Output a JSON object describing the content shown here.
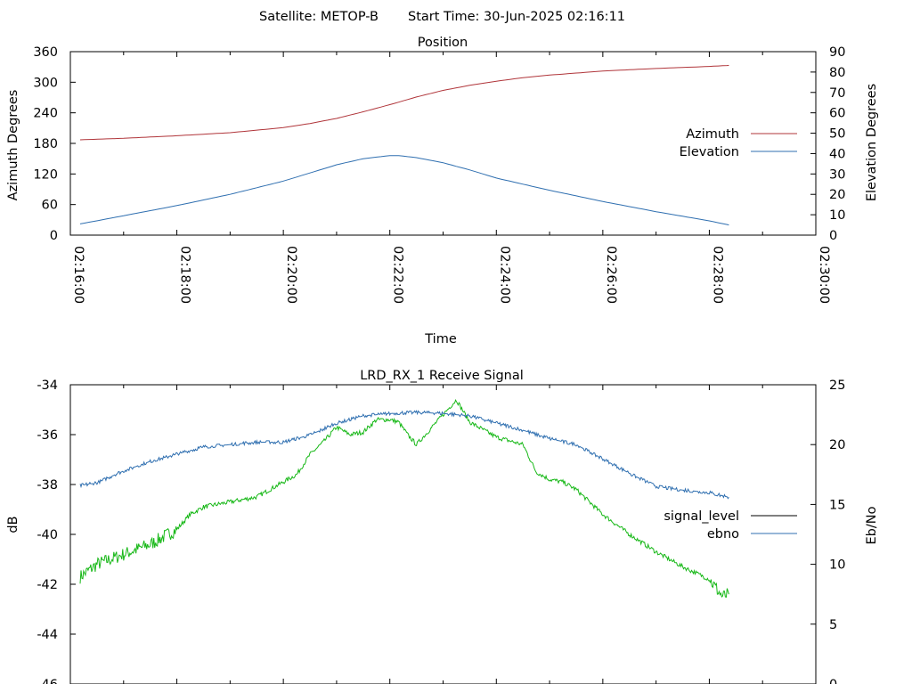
{
  "header": {
    "satellite_label": "Satellite: METOP-B",
    "start_time_label": "Start Time: 30-Jun-2025 02:16:11"
  },
  "chart_data": [
    {
      "type": "line",
      "title": "Position",
      "xlabel": "Time",
      "ylabel": "Azimuth Degrees",
      "y2label": "Elevation Degrees",
      "x_ticks": [
        "02:16:00",
        "02:18:00",
        "02:20:00",
        "02:22:00",
        "02:24:00",
        "02:26:00",
        "02:28:00",
        "02:30:00"
      ],
      "xlim": [
        "02:16:00",
        "02:30:00"
      ],
      "ylim": [
        0,
        360
      ],
      "y_ticks": [
        0,
        60,
        120,
        180,
        240,
        300,
        360
      ],
      "y2lim": [
        0,
        90
      ],
      "y2_ticks": [
        0,
        10,
        20,
        30,
        40,
        50,
        60,
        70,
        80,
        90
      ],
      "legend_position": "right",
      "grid": false,
      "series": [
        {
          "name": "Azimuth",
          "axis": "y",
          "color": "#b0353a",
          "x": [
            "02:16:11",
            "02:17:00",
            "02:18:00",
            "02:19:00",
            "02:20:00",
            "02:20:30",
            "02:21:00",
            "02:21:30",
            "02:22:00",
            "02:22:30",
            "02:23:00",
            "02:23:30",
            "02:24:00",
            "02:24:30",
            "02:25:00",
            "02:26:00",
            "02:27:00",
            "02:28:00",
            "02:28:22"
          ],
          "values": [
            187,
            190,
            195,
            201,
            211,
            219,
            229,
            242,
            256,
            271,
            284,
            294,
            302,
            309,
            314,
            322,
            327,
            331,
            333
          ]
        },
        {
          "name": "Elevation",
          "axis": "y2",
          "color": "#2f6fb0",
          "x": [
            "02:16:11",
            "02:17:00",
            "02:18:00",
            "02:19:00",
            "02:20:00",
            "02:20:30",
            "02:21:00",
            "02:21:30",
            "02:22:00",
            "02:22:10",
            "02:22:30",
            "02:23:00",
            "02:23:30",
            "02:24:00",
            "02:25:00",
            "02:26:00",
            "02:27:00",
            "02:28:00",
            "02:28:22"
          ],
          "values": [
            5.5,
            9.5,
            14.5,
            20,
            26.5,
            30.5,
            34.5,
            37.5,
            39,
            39,
            38,
            35.5,
            32,
            28,
            22,
            16.5,
            11.5,
            7,
            5
          ]
        }
      ]
    },
    {
      "type": "line",
      "title": "LRD_RX_1 Receive Signal",
      "xlabel": "",
      "ylabel": "dB",
      "y2label": "Eb/No",
      "xlim": [
        "02:16:00",
        "02:30:00"
      ],
      "ylim": [
        -46,
        -34
      ],
      "y_ticks": [
        -46,
        -44,
        -42,
        -40,
        -38,
        -36,
        -34
      ],
      "y2lim": [
        0,
        25
      ],
      "y2_ticks": [
        0,
        5,
        10,
        15,
        20,
        25
      ],
      "legend_position": "right",
      "grid": false,
      "series": [
        {
          "name": "signal_level",
          "axis": "y",
          "color": "#17b817",
          "x": [
            "02:16:11",
            "02:16:30",
            "02:17:00",
            "02:17:30",
            "02:18:00",
            "02:18:15",
            "02:18:30",
            "02:19:00",
            "02:19:30",
            "02:20:00",
            "02:20:15",
            "02:20:30",
            "02:20:45",
            "02:21:00",
            "02:21:15",
            "02:21:30",
            "02:21:45",
            "02:22:00",
            "02:22:10",
            "02:22:20",
            "02:22:30",
            "02:22:45",
            "02:23:00",
            "02:23:15",
            "02:23:30",
            "02:24:00",
            "02:24:30",
            "02:24:45",
            "02:25:00",
            "02:25:15",
            "02:25:30",
            "02:26:00",
            "02:26:30",
            "02:27:00",
            "02:27:30",
            "02:28:00",
            "02:28:15",
            "02:28:22"
          ],
          "values": [
            -41.7,
            -41.2,
            -40.8,
            -40.4,
            -39.8,
            -39.2,
            -38.9,
            -38.7,
            -38.5,
            -37.9,
            -37.6,
            -36.8,
            -36.3,
            -35.7,
            -36.0,
            -35.9,
            -35.4,
            -35.4,
            -35.5,
            -36.0,
            -36.4,
            -35.8,
            -35.2,
            -34.6,
            -35.5,
            -36.1,
            -36.4,
            -37.5,
            -37.8,
            -37.9,
            -38.2,
            -39.2,
            -40.0,
            -40.7,
            -41.3,
            -41.8,
            -42.5,
            -42.4
          ]
        },
        {
          "name": "ebno",
          "axis": "y2",
          "color": "#2f6fb0",
          "x": [
            "02:16:11",
            "02:16:30",
            "02:17:00",
            "02:17:30",
            "02:18:00",
            "02:18:30",
            "02:19:00",
            "02:19:30",
            "02:20:00",
            "02:20:30",
            "02:21:00",
            "02:21:30",
            "02:22:00",
            "02:22:30",
            "02:23:00",
            "02:23:30",
            "02:24:00",
            "02:24:30",
            "02:25:00",
            "02:25:30",
            "02:26:00",
            "02:26:30",
            "02:27:00",
            "02:27:30",
            "02:28:00",
            "02:28:22"
          ],
          "values": [
            16.6,
            16.8,
            17.8,
            18.6,
            19.2,
            19.8,
            20.0,
            20.2,
            20.2,
            20.8,
            21.8,
            22.4,
            22.6,
            22.7,
            22.6,
            22.4,
            21.8,
            21.2,
            20.5,
            20.0,
            18.8,
            17.6,
            16.5,
            16.2,
            16.0,
            15.6
          ]
        }
      ]
    }
  ]
}
